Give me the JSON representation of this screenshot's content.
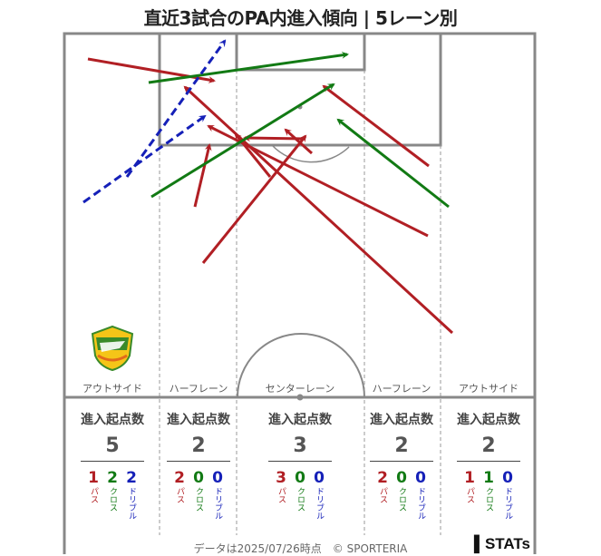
{
  "title": "直近3試合のPA内進入傾向 | 5レーン別",
  "colors": {
    "pass": "#b11f24",
    "cross": "#127a14",
    "dribble": "#1520b8",
    "pitch_line": "#888888"
  },
  "lanes": [
    {
      "name": "アウトサイド",
      "header": "進入起点数",
      "total": "5",
      "pass": "1",
      "cross": "2",
      "dribble": "2"
    },
    {
      "name": "ハーフレーン",
      "header": "進入起点数",
      "total": "2",
      "pass": "2",
      "cross": "0",
      "dribble": "0"
    },
    {
      "name": "センターレーン",
      "header": "進入起点数",
      "total": "3",
      "pass": "3",
      "cross": "0",
      "dribble": "0"
    },
    {
      "name": "ハーフレーン",
      "header": "進入起点数",
      "total": "2",
      "pass": "2",
      "cross": "0",
      "dribble": "0"
    },
    {
      "name": "アウトサイド",
      "header": "進入起点数",
      "total": "2",
      "pass": "1",
      "cross": "1",
      "dribble": "0"
    }
  ],
  "labels": {
    "pass": "パス",
    "cross": "クロス",
    "dribble": "ドリブル"
  },
  "footer": "データは2025/07/26時点　© SPORTERIA",
  "logo": "STATs",
  "chart_data": {
    "type": "scatter",
    "description_type": "arrow-map",
    "series": [
      {
        "name": "パス",
        "kind": "pass",
        "arrows": [
          {
            "from": [
              97,
              65
            ],
            "to": [
              236,
              89
            ]
          },
          {
            "from": [
              473,
              183
            ],
            "to": [
              357,
              95
            ]
          },
          {
            "from": [
              215,
              228
            ],
            "to": [
              231,
              160
            ]
          },
          {
            "from": [
              472,
              260
            ],
            "to": [
              230,
              139
            ]
          },
          {
            "from": [
              344,
              169
            ],
            "to": [
              315,
              143
            ]
          },
          {
            "from": [
              499,
              367
            ],
            "to": [
              204,
              96
            ]
          },
          {
            "from": [
              224,
              290
            ],
            "to": [
              337,
              150
            ]
          },
          {
            "from": [
              298,
              195
            ],
            "to": [
              260,
              148
            ]
          },
          {
            "from": [
              336,
              153
            ],
            "to": [
              270,
              152
            ]
          }
        ]
      },
      {
        "name": "クロス",
        "kind": "cross",
        "arrows": [
          {
            "from": [
              164,
              91
            ],
            "to": [
              383,
              60
            ]
          },
          {
            "from": [
              167,
              217
            ],
            "to": [
              368,
              93
            ]
          },
          {
            "from": [
              495,
              228
            ],
            "to": [
              373,
              132
            ]
          }
        ]
      },
      {
        "name": "ドリブル",
        "kind": "dribble",
        "arrows": [
          {
            "from": [
              140,
              195
            ],
            "to": [
              248,
              45
            ]
          },
          {
            "from": [
              92,
              223
            ],
            "to": [
              226,
              128
            ]
          }
        ]
      }
    ]
  }
}
